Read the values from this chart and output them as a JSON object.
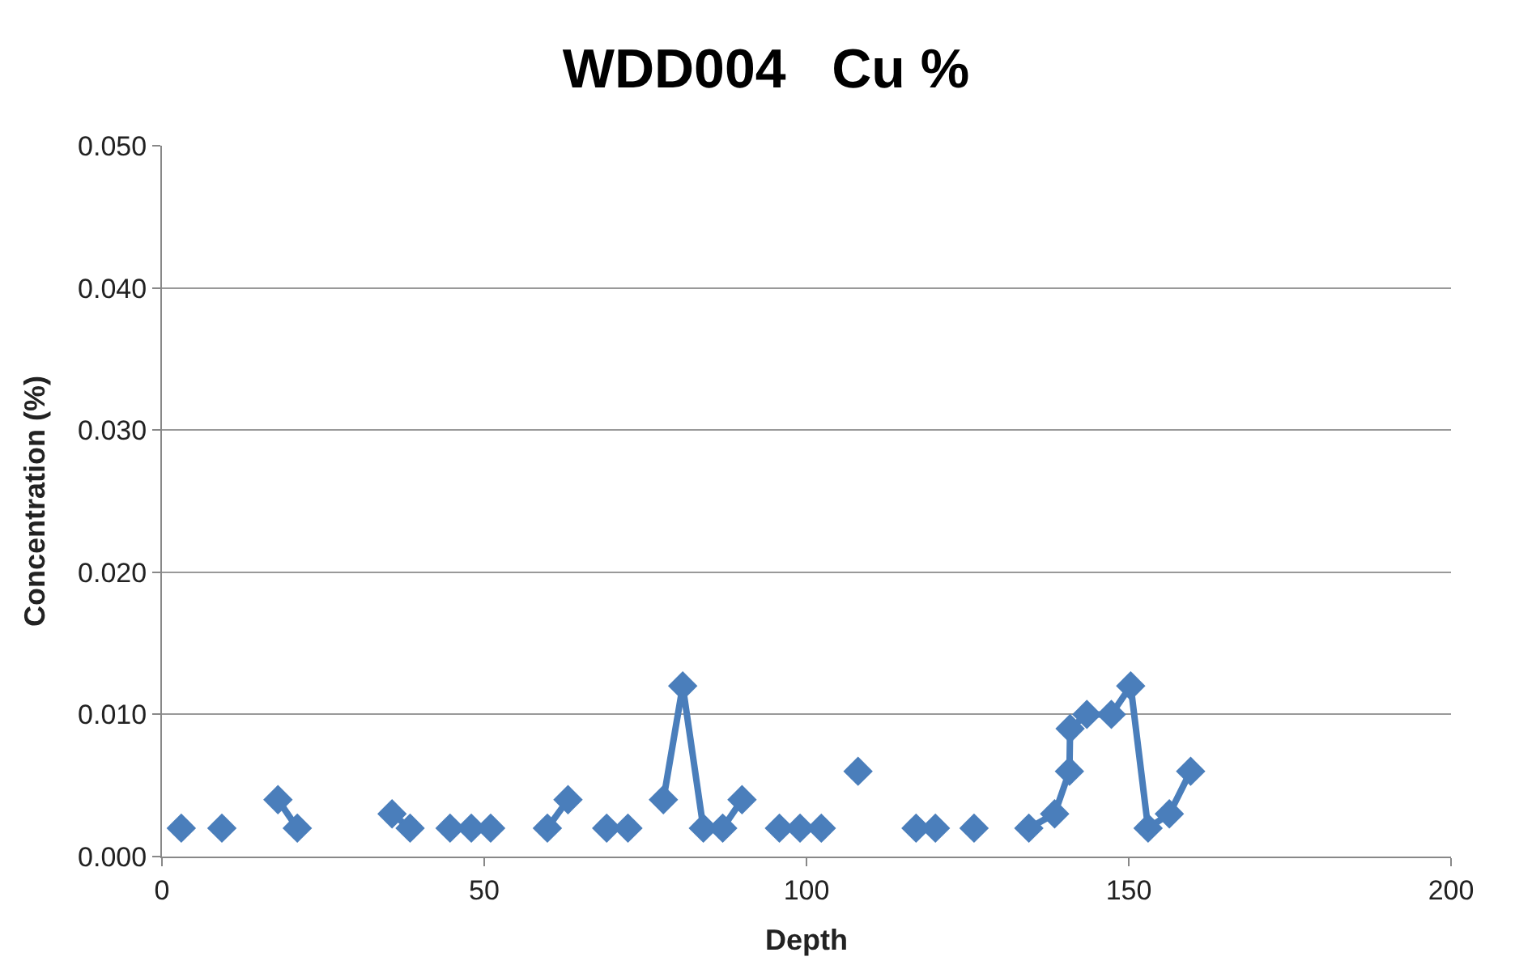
{
  "chart_data": {
    "type": "line",
    "title": "WDD004   Cu %",
    "xlabel": "Depth",
    "ylabel": "Concentration (%)",
    "x": [
      3,
      6,
      9.3,
      12,
      18,
      21,
      24,
      35.7,
      38.5,
      42,
      44.7,
      48,
      51,
      55,
      59.8,
      63,
      66,
      69,
      72.3,
      75,
      77.8,
      80.8,
      84,
      87,
      90,
      93,
      95.8,
      99,
      102.3,
      105,
      108,
      111,
      117,
      120,
      123,
      126,
      130,
      134.5,
      138.5,
      140.8,
      140.9,
      143.5,
      147.3,
      150.3,
      153,
      156.3,
      159.6
    ],
    "series": [
      {
        "color": "#4a7ebb",
        "values": [
          0.002,
          null,
          0.002,
          null,
          0.004,
          0.002,
          null,
          0.003,
          0.002,
          null,
          0.002,
          0.002,
          0.002,
          null,
          0.002,
          0.004,
          null,
          0.002,
          0.002,
          null,
          0.004,
          0.012,
          0.002,
          0.002,
          0.004,
          null,
          0.002,
          0.002,
          0.002,
          null,
          0.006,
          null,
          0.002,
          0.002,
          null,
          0.002,
          null,
          0.002,
          0.003,
          0.006,
          0.009,
          0.01,
          0.01,
          0.012,
          0.002,
          0.003,
          0.006
        ]
      }
    ],
    "xlim": [
      0,
      200
    ],
    "xticks": [
      0,
      50,
      100,
      150,
      200
    ],
    "ylim": [
      0,
      0.05
    ],
    "yticks": [
      {
        "value": 0,
        "label": "0.000"
      },
      {
        "value": 0.01,
        "label": "0.010"
      },
      {
        "value": 0.02,
        "label": "0.020"
      },
      {
        "value": 0.03,
        "label": "0.030"
      },
      {
        "value": 0.04,
        "label": "0.040"
      },
      {
        "value": 0.05,
        "label": "0.050"
      }
    ],
    "grid": "y",
    "marker": "diamond",
    "line_style": "solid",
    "legend": false
  }
}
